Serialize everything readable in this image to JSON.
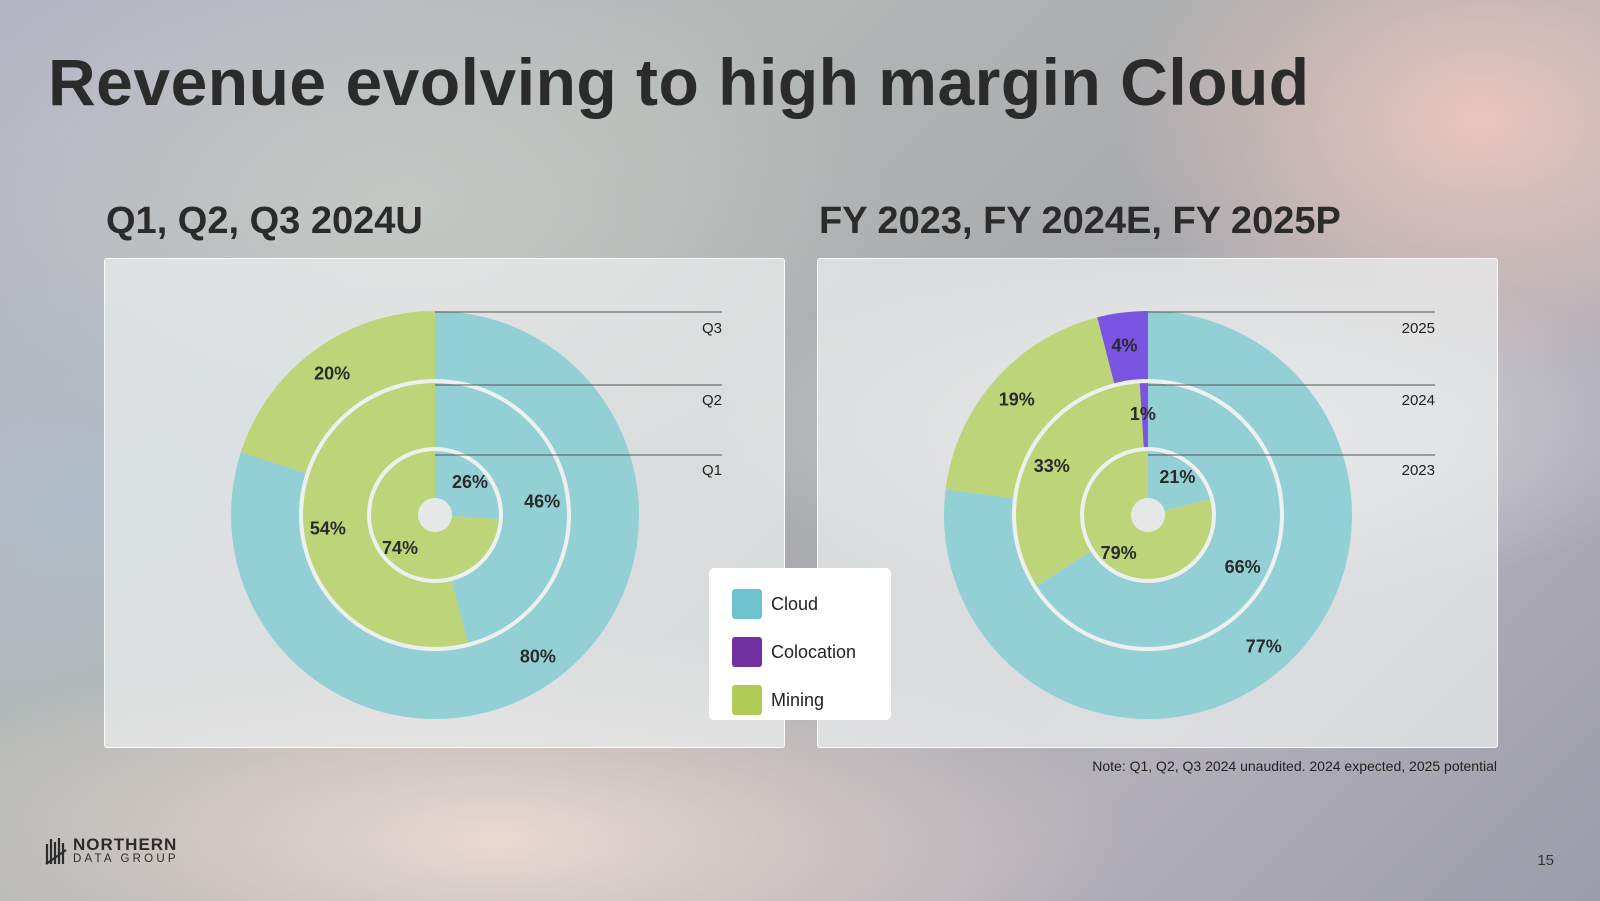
{
  "title": "Revenue evolving to high margin Cloud",
  "colors": {
    "Cloud": "#93d0d6",
    "Colocation": "#7b55e2",
    "Mining": "#bed478"
  },
  "legend": {
    "items": [
      {
        "label": "Cloud",
        "color": "#6cc3ce"
      },
      {
        "label": "Colocation",
        "color": "#7030a0"
      },
      {
        "label": "Mining",
        "color": "#b0cc55"
      }
    ]
  },
  "note": "Note: Q1, Q2, Q3 2024 unaudited. 2024 expected, 2025 potential",
  "logo": {
    "line1": "NORTHERN",
    "line2": "DATA GROUP"
  },
  "page_number": "15",
  "chart_data": [
    {
      "type": "nested-donut",
      "title": "Q1, Q2, Q3 2024U",
      "rings": [
        {
          "label": "Q1",
          "segments": [
            {
              "name": "Cloud",
              "value": 26,
              "label": "26%"
            },
            {
              "name": "Mining",
              "value": 74,
              "label": "74%"
            }
          ]
        },
        {
          "label": "Q2",
          "segments": [
            {
              "name": "Cloud",
              "value": 46,
              "label": "46%"
            },
            {
              "name": "Mining",
              "value": 54,
              "label": "54%"
            }
          ]
        },
        {
          "label": "Q3",
          "segments": [
            {
              "name": "Cloud",
              "value": 80,
              "label": "80%"
            },
            {
              "name": "Mining",
              "value": 20,
              "label": "20%"
            }
          ]
        }
      ]
    },
    {
      "type": "nested-donut",
      "title": "FY 2023, FY 2024E, FY 2025P",
      "rings": [
        {
          "label": "2023",
          "segments": [
            {
              "name": "Cloud",
              "value": 21,
              "label": "21%"
            },
            {
              "name": "Mining",
              "value": 79,
              "label": "79%"
            }
          ]
        },
        {
          "label": "2024",
          "segments": [
            {
              "name": "Cloud",
              "value": 66,
              "label": "66%"
            },
            {
              "name": "Mining",
              "value": 33,
              "label": "33%"
            },
            {
              "name": "Colocation",
              "value": 1,
              "label": "1%"
            }
          ]
        },
        {
          "label": "2025",
          "segments": [
            {
              "name": "Cloud",
              "value": 77,
              "label": "77%"
            },
            {
              "name": "Mining",
              "value": 19,
              "label": "19%"
            },
            {
              "name": "Colocation",
              "value": 4,
              "label": "4%"
            }
          ]
        }
      ]
    }
  ]
}
